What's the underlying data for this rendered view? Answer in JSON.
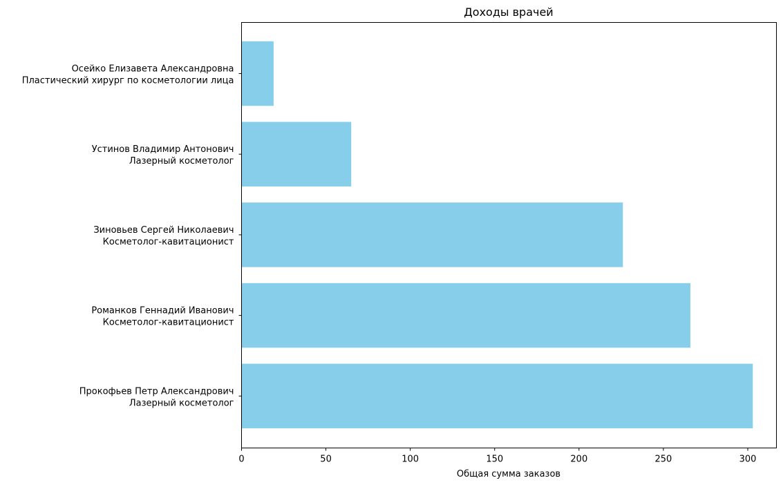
{
  "chart_data": {
    "type": "bar",
    "orientation": "horizontal",
    "title": "Доходы врачей",
    "xlabel": "Общая сумма заказов",
    "ylabel": "",
    "xlim": [
      0,
      317
    ],
    "xticks": [
      0,
      50,
      100,
      150,
      200,
      250,
      300
    ],
    "grid": false,
    "bar_color": "#87CEEB",
    "categories": [
      {
        "name": "Прокофьев Петр Александрович",
        "role": "Лазерный косметолог"
      },
      {
        "name": "Романков Геннадий Иванович",
        "role": "Косметолог-кавитационист"
      },
      {
        "name": "Зиновьев Сергей Николаевич",
        "role": "Косметолог-кавитационист"
      },
      {
        "name": "Устинов Владимир Антонович",
        "role": "Лазерный косметолог"
      },
      {
        "name": "Осейко Елизавета Александровна",
        "role": "Пластический хирург по косметологии лица"
      }
    ],
    "values": [
      303,
      266,
      226,
      65,
      19
    ]
  }
}
